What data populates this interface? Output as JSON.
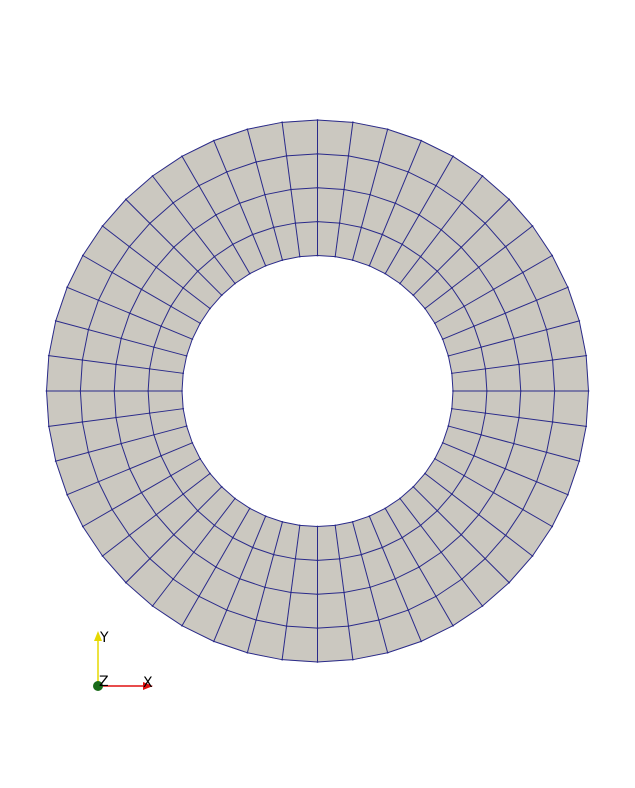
{
  "scene": {
    "background_color": "#ffffff",
    "mesh": {
      "type": "annulus-quad-mesh",
      "radial_divisions": 4,
      "circumferential_divisions": 48,
      "inner_radius_ratio": 0.5,
      "face_color": "#cbc8c0",
      "edge_color": "#2a2a8a"
    }
  },
  "axes_triad": {
    "x_label": "X",
    "y_label": "Y",
    "z_label": "Z",
    "x_color": "#e01010",
    "y_color": "#e6d800",
    "z_color": "#1a6b1a"
  }
}
